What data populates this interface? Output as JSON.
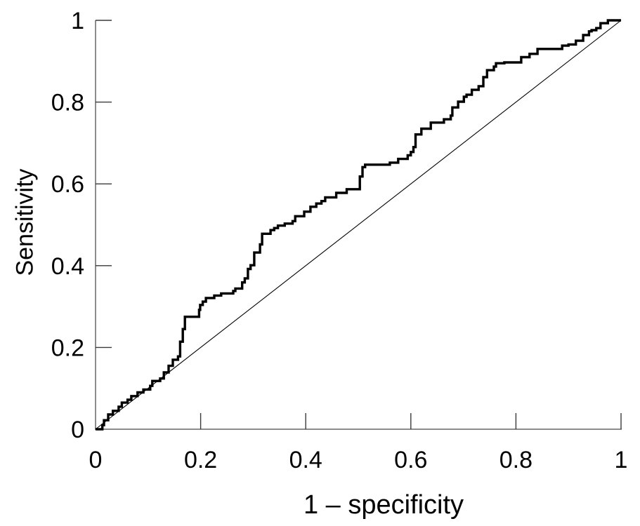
{
  "chart_data": {
    "type": "line",
    "subtype": "roc-step-curve",
    "title": "",
    "xlabel": "1 – specificity",
    "ylabel": "Sensitivity",
    "xlim": [
      0,
      1
    ],
    "ylim": [
      0,
      1
    ],
    "grid": false,
    "legend": "none",
    "xticks": [
      0,
      0.2,
      0.4,
      0.6,
      0.8,
      1
    ],
    "yticks": [
      0,
      0.2,
      0.4,
      0.6,
      0.8,
      1
    ],
    "xtick_labels": [
      "0",
      "0.2",
      "0.4",
      "0.6",
      "0.8",
      "1"
    ],
    "ytick_labels": [
      "0",
      "0.2",
      "0.4",
      "0.6",
      "0.8",
      "1"
    ],
    "style": {
      "axis_color": "#8c8c8c",
      "axis_width": 2,
      "tick_color": "#3a3a3a",
      "tick_width": 1.4,
      "tick_length_inward": 23,
      "text_color": "#000000",
      "tick_font_size": 34
    },
    "series": [
      {
        "name": "ROC curve",
        "draw": "step",
        "stroke": "#000000",
        "stroke_width": 3.4,
        "points": [
          [
            0.0,
            0.0
          ],
          [
            0.013,
            0.0
          ],
          [
            0.013,
            0.01
          ],
          [
            0.016,
            0.01
          ],
          [
            0.016,
            0.022
          ],
          [
            0.024,
            0.022
          ],
          [
            0.024,
            0.036
          ],
          [
            0.033,
            0.036
          ],
          [
            0.033,
            0.045
          ],
          [
            0.044,
            0.045
          ],
          [
            0.044,
            0.055
          ],
          [
            0.05,
            0.055
          ],
          [
            0.05,
            0.065
          ],
          [
            0.061,
            0.065
          ],
          [
            0.061,
            0.072
          ],
          [
            0.068,
            0.072
          ],
          [
            0.068,
            0.081
          ],
          [
            0.08,
            0.081
          ],
          [
            0.08,
            0.09
          ],
          [
            0.091,
            0.09
          ],
          [
            0.091,
            0.097
          ],
          [
            0.104,
            0.097
          ],
          [
            0.104,
            0.106
          ],
          [
            0.108,
            0.106
          ],
          [
            0.108,
            0.118
          ],
          [
            0.123,
            0.118
          ],
          [
            0.123,
            0.124
          ],
          [
            0.13,
            0.124
          ],
          [
            0.13,
            0.139
          ],
          [
            0.139,
            0.139
          ],
          [
            0.139,
            0.155
          ],
          [
            0.147,
            0.155
          ],
          [
            0.147,
            0.17
          ],
          [
            0.157,
            0.17
          ],
          [
            0.157,
            0.178
          ],
          [
            0.161,
            0.178
          ],
          [
            0.161,
            0.214
          ],
          [
            0.166,
            0.214
          ],
          [
            0.166,
            0.245
          ],
          [
            0.17,
            0.245
          ],
          [
            0.17,
            0.275
          ],
          [
            0.197,
            0.275
          ],
          [
            0.197,
            0.292
          ],
          [
            0.199,
            0.292
          ],
          [
            0.199,
            0.304
          ],
          [
            0.204,
            0.304
          ],
          [
            0.204,
            0.312
          ],
          [
            0.21,
            0.312
          ],
          [
            0.21,
            0.321
          ],
          [
            0.226,
            0.321
          ],
          [
            0.226,
            0.327
          ],
          [
            0.239,
            0.327
          ],
          [
            0.239,
            0.332
          ],
          [
            0.262,
            0.332
          ],
          [
            0.262,
            0.338
          ],
          [
            0.266,
            0.338
          ],
          [
            0.266,
            0.344
          ],
          [
            0.279,
            0.344
          ],
          [
            0.279,
            0.359
          ],
          [
            0.284,
            0.359
          ],
          [
            0.284,
            0.369
          ],
          [
            0.29,
            0.369
          ],
          [
            0.29,
            0.392
          ],
          [
            0.295,
            0.392
          ],
          [
            0.295,
            0.401
          ],
          [
            0.302,
            0.401
          ],
          [
            0.302,
            0.432
          ],
          [
            0.313,
            0.432
          ],
          [
            0.313,
            0.452
          ],
          [
            0.317,
            0.452
          ],
          [
            0.317,
            0.478
          ],
          [
            0.333,
            0.478
          ],
          [
            0.333,
            0.487
          ],
          [
            0.34,
            0.487
          ],
          [
            0.34,
            0.492
          ],
          [
            0.347,
            0.492
          ],
          [
            0.347,
            0.498
          ],
          [
            0.36,
            0.498
          ],
          [
            0.36,
            0.503
          ],
          [
            0.375,
            0.503
          ],
          [
            0.375,
            0.509
          ],
          [
            0.38,
            0.509
          ],
          [
            0.38,
            0.521
          ],
          [
            0.397,
            0.521
          ],
          [
            0.397,
            0.532
          ],
          [
            0.409,
            0.532
          ],
          [
            0.409,
            0.544
          ],
          [
            0.42,
            0.544
          ],
          [
            0.42,
            0.552
          ],
          [
            0.43,
            0.552
          ],
          [
            0.43,
            0.558
          ],
          [
            0.437,
            0.558
          ],
          [
            0.437,
            0.567
          ],
          [
            0.458,
            0.567
          ],
          [
            0.458,
            0.578
          ],
          [
            0.478,
            0.578
          ],
          [
            0.478,
            0.587
          ],
          [
            0.503,
            0.587
          ],
          [
            0.503,
            0.618
          ],
          [
            0.508,
            0.618
          ],
          [
            0.508,
            0.641
          ],
          [
            0.513,
            0.641
          ],
          [
            0.513,
            0.647
          ],
          [
            0.56,
            0.647
          ],
          [
            0.56,
            0.652
          ],
          [
            0.576,
            0.652
          ],
          [
            0.576,
            0.661
          ],
          [
            0.594,
            0.661
          ],
          [
            0.594,
            0.67
          ],
          [
            0.6,
            0.67
          ],
          [
            0.6,
            0.678
          ],
          [
            0.605,
            0.678
          ],
          [
            0.605,
            0.69
          ],
          [
            0.609,
            0.69
          ],
          [
            0.609,
            0.721
          ],
          [
            0.62,
            0.721
          ],
          [
            0.62,
            0.735
          ],
          [
            0.638,
            0.735
          ],
          [
            0.638,
            0.75
          ],
          [
            0.663,
            0.75
          ],
          [
            0.663,
            0.758
          ],
          [
            0.676,
            0.758
          ],
          [
            0.676,
            0.767
          ],
          [
            0.679,
            0.767
          ],
          [
            0.679,
            0.787
          ],
          [
            0.69,
            0.787
          ],
          [
            0.69,
            0.801
          ],
          [
            0.701,
            0.801
          ],
          [
            0.701,
            0.813
          ],
          [
            0.706,
            0.813
          ],
          [
            0.706,
            0.818
          ],
          [
            0.716,
            0.818
          ],
          [
            0.716,
            0.83
          ],
          [
            0.729,
            0.83
          ],
          [
            0.729,
            0.839
          ],
          [
            0.738,
            0.839
          ],
          [
            0.738,
            0.861
          ],
          [
            0.745,
            0.861
          ],
          [
            0.745,
            0.878
          ],
          [
            0.758,
            0.878
          ],
          [
            0.758,
            0.887
          ],
          [
            0.762,
            0.887
          ],
          [
            0.762,
            0.895
          ],
          [
            0.778,
            0.895
          ],
          [
            0.778,
            0.897
          ],
          [
            0.81,
            0.897
          ],
          [
            0.81,
            0.91
          ],
          [
            0.826,
            0.91
          ],
          [
            0.826,
            0.918
          ],
          [
            0.841,
            0.918
          ],
          [
            0.841,
            0.93
          ],
          [
            0.888,
            0.93
          ],
          [
            0.888,
            0.938
          ],
          [
            0.9,
            0.938
          ],
          [
            0.9,
            0.941
          ],
          [
            0.914,
            0.941
          ],
          [
            0.914,
            0.95
          ],
          [
            0.928,
            0.95
          ],
          [
            0.928,
            0.964
          ],
          [
            0.939,
            0.964
          ],
          [
            0.939,
            0.973
          ],
          [
            0.944,
            0.973
          ],
          [
            0.944,
            0.976
          ],
          [
            0.953,
            0.976
          ],
          [
            0.953,
            0.981
          ],
          [
            0.961,
            0.981
          ],
          [
            0.961,
            0.993
          ],
          [
            0.975,
            0.993
          ],
          [
            0.975,
            1.0
          ],
          [
            1.0,
            1.0
          ]
        ]
      },
      {
        "name": "chance reference diagonal",
        "draw": "line",
        "stroke": "#000000",
        "stroke_width": 1.1,
        "points": [
          [
            0,
            0
          ],
          [
            1,
            1
          ]
        ]
      }
    ]
  }
}
